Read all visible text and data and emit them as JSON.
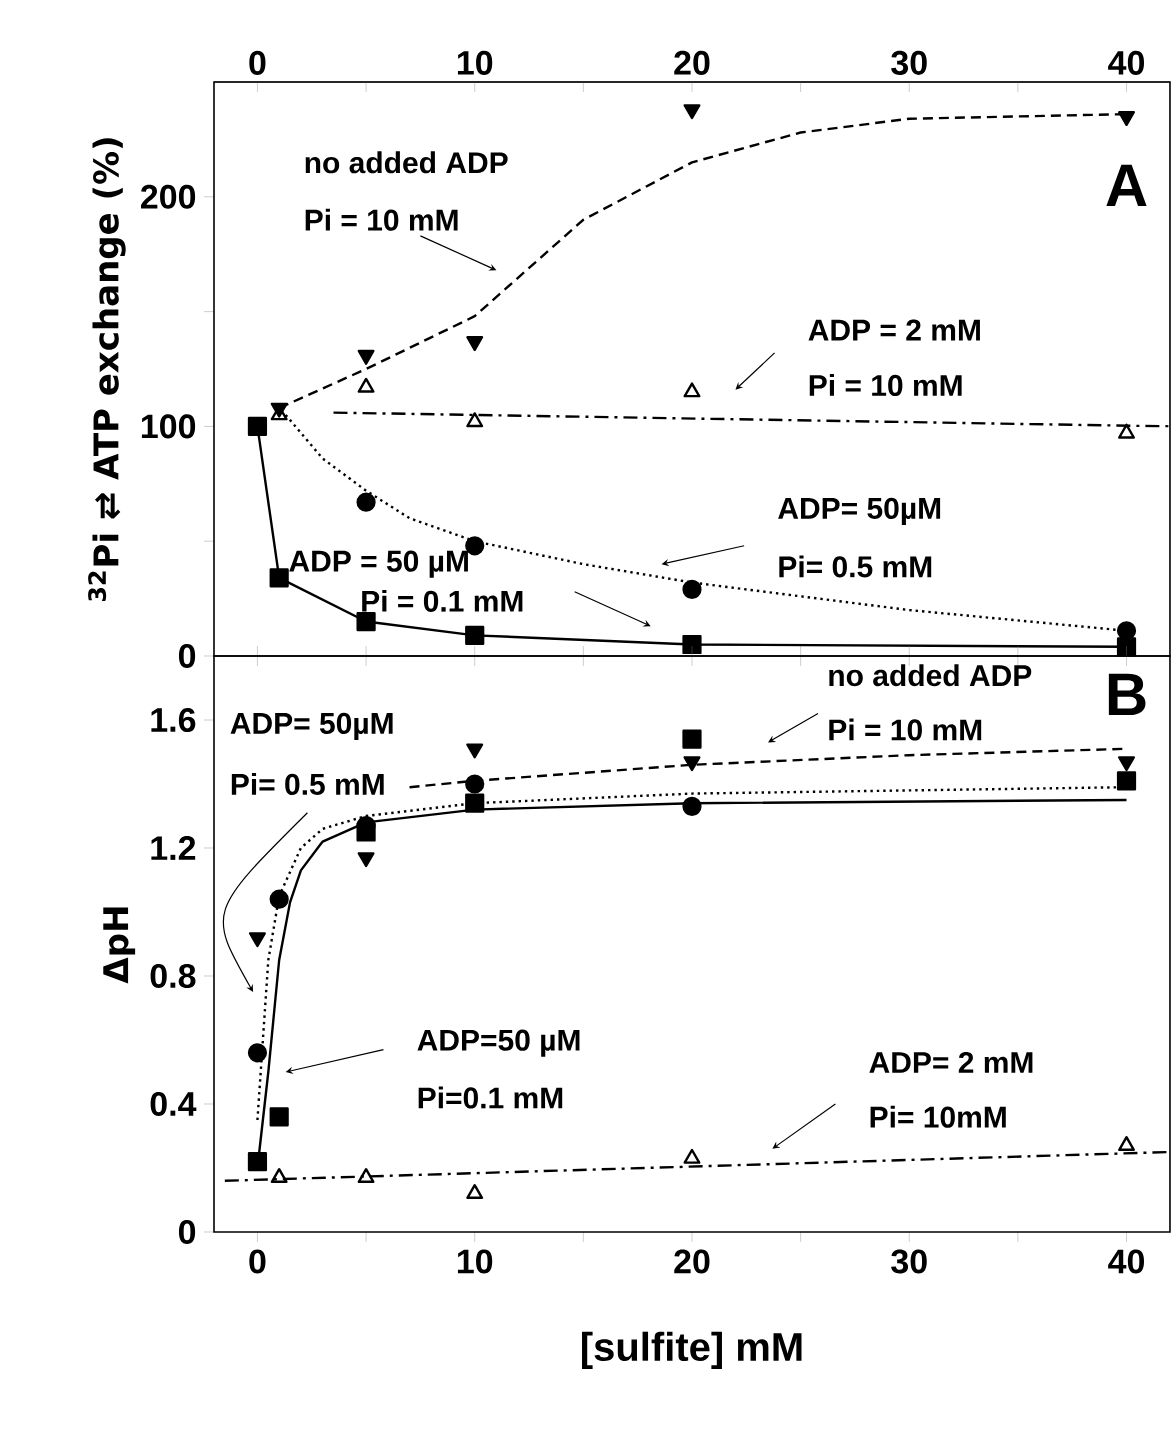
{
  "chart_data": [
    {
      "type": "scatter",
      "ylabel": "$^{32}$Pi ⇄ ATP exchange (%)",
      "x": [
        0,
        1,
        5,
        10,
        20,
        40
      ],
      "xlim": [
        -2,
        42
      ],
      "xticks": [
        0,
        {
          "value": 5,
          "label": null
        },
        10,
        {
          "value": 15,
          "label": null
        },
        20,
        {
          "value": 25,
          "label": null
        },
        30,
        {
          "value": 35,
          "label": null
        },
        40
      ],
      "x2lim": [
        -2,
        42
      ],
      "x2ticks": [
        0,
        {
          "value": 5,
          "label": null
        },
        10,
        {
          "value": 15,
          "label": null
        },
        20,
        {
          "value": 25,
          "label": null
        },
        30,
        {
          "value": 35,
          "label": null
        },
        40
      ],
      "ylim": [
        0,
        250
      ],
      "yticks": [
        0,
        {
          "value": 50,
          "label": null
        },
        100,
        {
          "value": 150,
          "label": null
        },
        200
      ],
      "tick_labels": "y",
      "series": [
        {
          "color": "#000000",
          "marker": "triangle-down",
          "values": [
            null,
            108,
            131,
            137,
            238,
            235
          ]
        },
        {
          "color": "#000000",
          "marker": "triangle",
          "values": [
            null,
            105,
            117,
            102,
            115,
            97
          ]
        },
        {
          "color": "#000000",
          "marker": "circle",
          "values": [
            null,
            null,
            67,
            48,
            29,
            11
          ]
        },
        {
          "type": "line",
          "color": "#000000",
          "marker": "square",
          "line_style": "solid",
          "values": [
            100,
            34,
            15,
            9,
            5,
            4
          ]
        },
        {
          "type": "line",
          "color": "#000000",
          "marker": "none",
          "line_style": "dashed",
          "x": [
            1,
            5,
            10,
            15,
            20,
            25,
            30,
            40
          ],
          "values": [
            108,
            125,
            148,
            190,
            215,
            228,
            234,
            236
          ]
        },
        {
          "type": "line",
          "color": "#000000",
          "marker": "none",
          "line_style": "dashdot",
          "x": [
            3.5,
            42
          ],
          "values": [
            106,
            100
          ]
        },
        {
          "type": "line",
          "color": "#000000",
          "marker": "none",
          "line_style": "dotted",
          "x": [
            1.3,
            3,
            5,
            7,
            10,
            15,
            20,
            30,
            40
          ],
          "values": [
            105,
            86,
            72,
            60,
            50,
            40,
            32,
            20,
            11
          ]
        }
      ],
      "annotations": [
        "no added ADP",
        "Pi = 10 mM",
        "ADP = 2 mM",
        "Pi = 10 mM",
        "ADP= 50µM",
        "Pi= 0.5 mM",
        "ADP = 50 µM",
        "Pi = 0.1 mM",
        "A"
      ]
    },
    {
      "type": "scatter",
      "ylabel": "ΔpH",
      "xlabel": "[sulfite] mM",
      "x": [
        0,
        1,
        5,
        10,
        20,
        40
      ],
      "xlim": [
        -2,
        42
      ],
      "xticks": [
        0,
        {
          "value": 5,
          "label": null
        },
        10,
        {
          "value": 15,
          "label": null
        },
        20,
        {
          "value": 25,
          "label": null
        },
        30,
        {
          "value": 35,
          "label": null
        },
        40
      ],
      "ylim": [
        0,
        1.8
      ],
      "yticks": [
        0,
        0.4,
        0.8,
        1.2,
        1.6
      ],
      "series": [
        {
          "color": "#000000",
          "marker": "triangle-down",
          "x": [
            0,
            5,
            10,
            20,
            40
          ],
          "values": [
            0.92,
            1.17,
            1.51,
            1.47,
            1.47
          ]
        },
        {
          "color": "#000000",
          "marker": "square",
          "values": [
            0.22,
            0.36,
            1.25,
            1.34,
            1.54,
            1.41
          ]
        },
        {
          "color": "#000000",
          "marker": "circle",
          "values": [
            0.56,
            1.04,
            1.27,
            1.4,
            1.33,
            null
          ]
        },
        {
          "color": "#000000",
          "marker": "triangle",
          "x": [
            1,
            5,
            10,
            20,
            40
          ],
          "values": [
            0.17,
            0.17,
            0.12,
            0.23,
            0.27
          ]
        },
        {
          "type": "line",
          "color": "#000000",
          "marker": "none",
          "line_style": "dashed",
          "x": [
            7,
            10,
            20,
            30,
            40
          ],
          "values": [
            1.39,
            1.41,
            1.46,
            1.49,
            1.51
          ]
        },
        {
          "type": "line",
          "color": "#000000",
          "marker": "none",
          "line_style": "dotted",
          "x": [
            0,
            0.5,
            1,
            2,
            3,
            5,
            10,
            20,
            40
          ],
          "values": [
            0.35,
            0.85,
            1.05,
            1.2,
            1.26,
            1.3,
            1.34,
            1.37,
            1.39
          ]
        },
        {
          "type": "line",
          "color": "#000000",
          "marker": "none",
          "line_style": "solid",
          "x": [
            0,
            0.5,
            1,
            1.5,
            2,
            3,
            5,
            10,
            20,
            40
          ],
          "values": [
            0.2,
            0.5,
            0.85,
            1.03,
            1.13,
            1.22,
            1.28,
            1.32,
            1.34,
            1.35
          ]
        },
        {
          "type": "line",
          "color": "#000000",
          "marker": "none",
          "line_style": "dashdot",
          "x": [
            -1.5,
            42
          ],
          "values": [
            0.16,
            0.25
          ]
        }
      ],
      "annotations": [
        "no added ADP",
        "Pi = 10 mM",
        "B",
        "ADP= 50µM",
        "Pi= 0.5 mM",
        "ADP=50 µM",
        "Pi=0.1 mM",
        "ADP= 2 mM",
        "Pi= 10mM"
      ]
    }
  ]
}
